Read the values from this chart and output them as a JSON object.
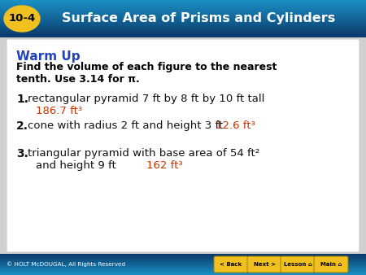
{
  "title_number": "10-4",
  "title_text": "Surface Area of Prisms and Cylinders",
  "header_bg_top": "#1b8fc4",
  "header_bg_bottom": "#0a3a6a",
  "badge_color": "#f0c020",
  "badge_text_color": "#000000",
  "title_text_color": "#ffffff",
  "warm_up_label": "Warm Up",
  "warm_up_color": "#2244bb",
  "instruction_line1": "Find the volume of each figure to the nearest",
  "instruction_line2": "tenth. Use 3.14 for π.",
  "instruction_color": "#000000",
  "item1_num": "1.",
  "item1_text": "rectangular pyramid 7 ft by 8 ft by 10 ft tall",
  "item1_answer": "186.7 ft³",
  "item2_num": "2.",
  "item2_text": "cone with radius 2 ft and height 3 ft",
  "item2_answer": "12.6 ft³",
  "item3_num": "3.",
  "item3_line1": "triangular pyramid with base area of 54 ft²",
  "item3_line2": "and height 9 ft",
  "item3_answer": "162 ft³",
  "answer_color": "#cc3300",
  "item_text_color": "#111111",
  "footer_text": "© HOLT McDOUGAL, All Rights Reserved",
  "footer_buttons": [
    "< Back",
    "Next >",
    "Lesson ⌂",
    "Main ⌂"
  ],
  "button_color": "#f0c020",
  "button_text_color": "#000000",
  "content_bg": "#ffffff",
  "content_border": "#cccccc",
  "outer_bg": "#d0d0d0"
}
